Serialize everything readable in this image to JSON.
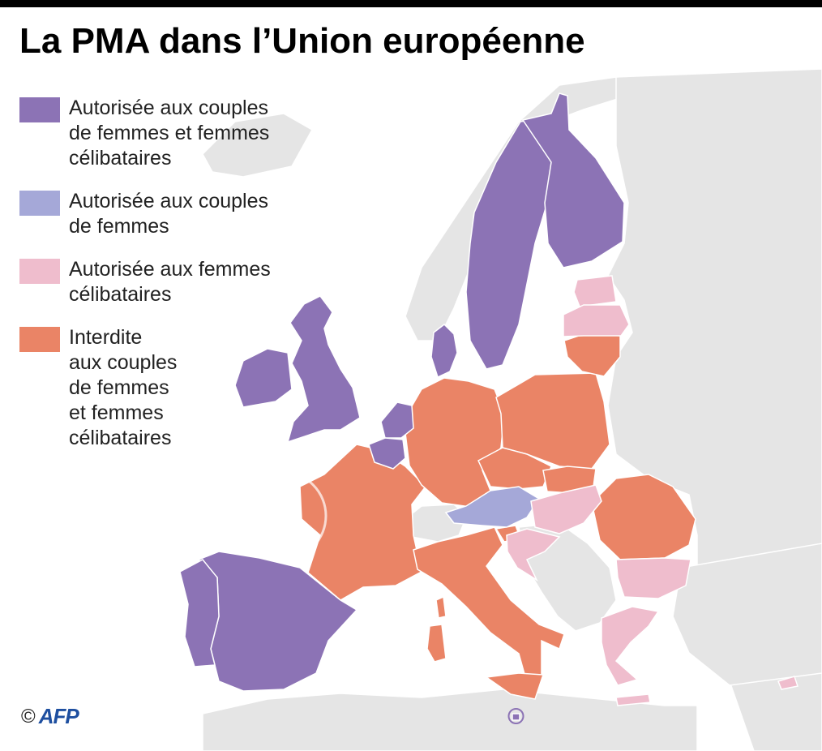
{
  "title": "La PMA dans l’Union européenne",
  "legend": [
    {
      "label": "Autorisée aux couples\nde femmes et femmes\ncélibataires",
      "color": "#8c73b5"
    },
    {
      "label": "Autorisée aux couples\nde femmes",
      "color": "#a5a8d8"
    },
    {
      "label": "Autorisée aux femmes\ncélibataires",
      "color": "#efbdcd"
    },
    {
      "label": "Interdite\naux couples\nde femmes\net femmes\ncélibataires",
      "color": "#ea8466"
    }
  ],
  "colors": {
    "non_eu_land": "#e5e5e5",
    "eu_no_data": "#e5e5e5",
    "sea": "#ffffff",
    "border": "#ffffff"
  },
  "map": {
    "watermark": "AFP",
    "countries": [
      {
        "name": "Royaume-Uni",
        "status": "couples-and-single"
      },
      {
        "name": "Irlande",
        "status": "couples-and-single"
      },
      {
        "name": "Belgique",
        "status": "couples-and-single"
      },
      {
        "name": "Pays-Bas",
        "status": "couples-and-single"
      },
      {
        "name": "Danemark",
        "status": "couples-and-single"
      },
      {
        "name": "Suède",
        "status": "couples-and-single"
      },
      {
        "name": "Finlande",
        "status": "couples-and-single"
      },
      {
        "name": "Espagne",
        "status": "couples-and-single"
      },
      {
        "name": "Portugal",
        "status": "couples-and-single"
      },
      {
        "name": "Luxembourg",
        "status": "couples-and-single"
      },
      {
        "name": "Malte",
        "status": "couples-and-single"
      },
      {
        "name": "Autriche",
        "status": "couples"
      },
      {
        "name": "Estonie",
        "status": "single"
      },
      {
        "name": "Lettonie",
        "status": "single"
      },
      {
        "name": "Hongrie",
        "status": "single"
      },
      {
        "name": "Croatie",
        "status": "single"
      },
      {
        "name": "Bulgarie",
        "status": "single"
      },
      {
        "name": "Grèce",
        "status": "single"
      },
      {
        "name": "Chypre",
        "status": "single"
      },
      {
        "name": "France",
        "status": "forbidden"
      },
      {
        "name": "Allemagne",
        "status": "forbidden"
      },
      {
        "name": "Italie",
        "status": "forbidden"
      },
      {
        "name": "Pologne",
        "status": "forbidden"
      },
      {
        "name": "Tchéquie",
        "status": "forbidden"
      },
      {
        "name": "Slovaquie",
        "status": "forbidden"
      },
      {
        "name": "Slovénie",
        "status": "forbidden"
      },
      {
        "name": "Roumanie",
        "status": "forbidden"
      },
      {
        "name": "Lituanie",
        "status": "forbidden"
      }
    ]
  },
  "credit": {
    "copyright": "©",
    "agency": "AFP"
  }
}
